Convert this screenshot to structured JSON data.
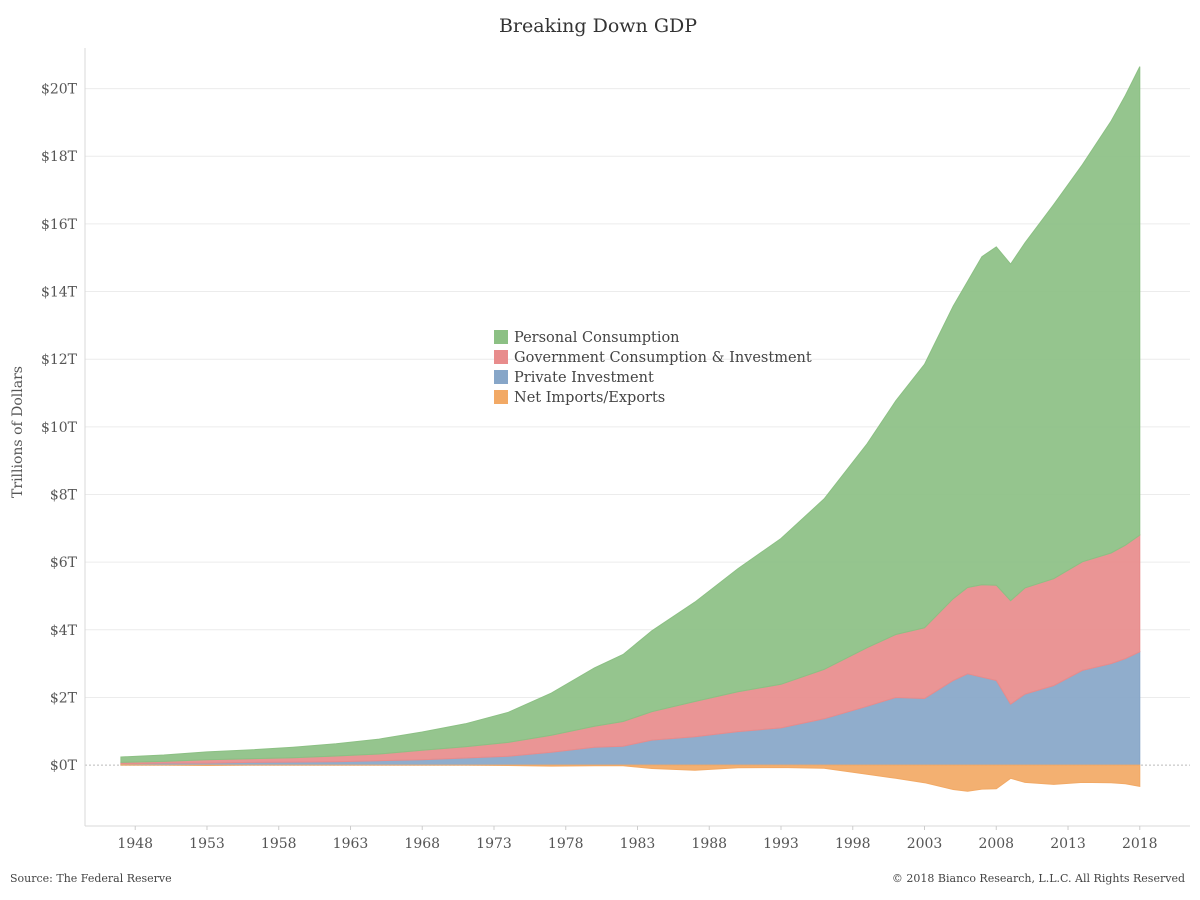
{
  "chart_data": {
    "type": "area",
    "title": "Breaking Down GDP",
    "ylabel": "Trillions of Dollars",
    "xlabel": "",
    "xlim": [
      1944.5,
      2021.5
    ],
    "ylim": [
      -1.8,
      21.2
    ],
    "x_ticks": [
      1948,
      1953,
      1958,
      1963,
      1968,
      1973,
      1978,
      1983,
      1988,
      1993,
      1998,
      2003,
      2008,
      2013,
      2018
    ],
    "x_tick_labels": [
      "1948",
      "1953",
      "1958",
      "1963",
      "1968",
      "1973",
      "1978",
      "1983",
      "1988",
      "1993",
      "1998",
      "2003",
      "2008",
      "2013",
      "2018"
    ],
    "y_ticks": [
      0,
      2,
      4,
      6,
      8,
      10,
      12,
      14,
      16,
      18,
      20
    ],
    "y_tick_labels": [
      "$0T",
      "$2T",
      "$4T",
      "$6T",
      "$8T",
      "$10T",
      "$12T",
      "$14T",
      "$16T",
      "$18T",
      "$20T"
    ],
    "grid": true,
    "legend_position": "center",
    "x": [
      1947,
      1950,
      1953,
      1956,
      1959,
      1962,
      1965,
      1968,
      1971,
      1974,
      1977,
      1980,
      1982,
      1984,
      1987,
      1990,
      1993,
      1996,
      1999,
      2001,
      2003,
      2005,
      2006,
      2007,
      2008,
      2009,
      2010,
      2012,
      2014,
      2016,
      2017,
      2018
    ],
    "series": [
      {
        "name": "Personal Consumption",
        "color": "#8cc084",
        "values": [
          0.16,
          0.19,
          0.23,
          0.26,
          0.31,
          0.36,
          0.44,
          0.54,
          0.68,
          0.89,
          1.25,
          1.72,
          1.98,
          2.39,
          2.94,
          3.64,
          4.31,
          5.04,
          6.03,
          6.91,
          7.79,
          8.65,
          9.05,
          9.7,
          10.0,
          9.95,
          10.2,
          11.06,
          11.74,
          12.77,
          13.3,
          13.85
        ]
      },
      {
        "name": "Government Consumption & Investment",
        "color": "#e88c8c",
        "values": [
          0.04,
          0.05,
          0.1,
          0.11,
          0.13,
          0.17,
          0.2,
          0.28,
          0.33,
          0.41,
          0.5,
          0.62,
          0.73,
          0.84,
          1.04,
          1.18,
          1.29,
          1.46,
          1.73,
          1.86,
          2.09,
          2.42,
          2.55,
          2.73,
          2.82,
          3.06,
          3.14,
          3.16,
          3.21,
          3.27,
          3.35,
          3.45
        ]
      },
      {
        "name": "Private Investment",
        "color": "#87a6c8",
        "values": [
          0.04,
          0.06,
          0.06,
          0.08,
          0.09,
          0.1,
          0.13,
          0.16,
          0.21,
          0.26,
          0.38,
          0.53,
          0.56,
          0.74,
          0.84,
          0.99,
          1.1,
          1.37,
          1.74,
          2.0,
          1.97,
          2.5,
          2.7,
          2.6,
          2.5,
          1.8,
          2.1,
          2.35,
          2.8,
          3.0,
          3.15,
          3.35
        ]
      },
      {
        "name": "Net Imports/Exports",
        "color": "#f2a965",
        "values": [
          0.01,
          0.0,
          -0.01,
          0.0,
          0.0,
          0.0,
          0.0,
          0.0,
          0.0,
          -0.01,
          -0.03,
          -0.02,
          -0.02,
          -0.1,
          -0.15,
          -0.08,
          -0.07,
          -0.09,
          -0.27,
          -0.39,
          -0.52,
          -0.72,
          -0.77,
          -0.71,
          -0.7,
          -0.39,
          -0.51,
          -0.57,
          -0.51,
          -0.52,
          -0.55,
          -0.63
        ]
      }
    ]
  },
  "footer": {
    "source": "Source: The Federal Reserve",
    "copyright": "© 2018 Bianco Research, L.L.C. All Rights Reserved"
  }
}
